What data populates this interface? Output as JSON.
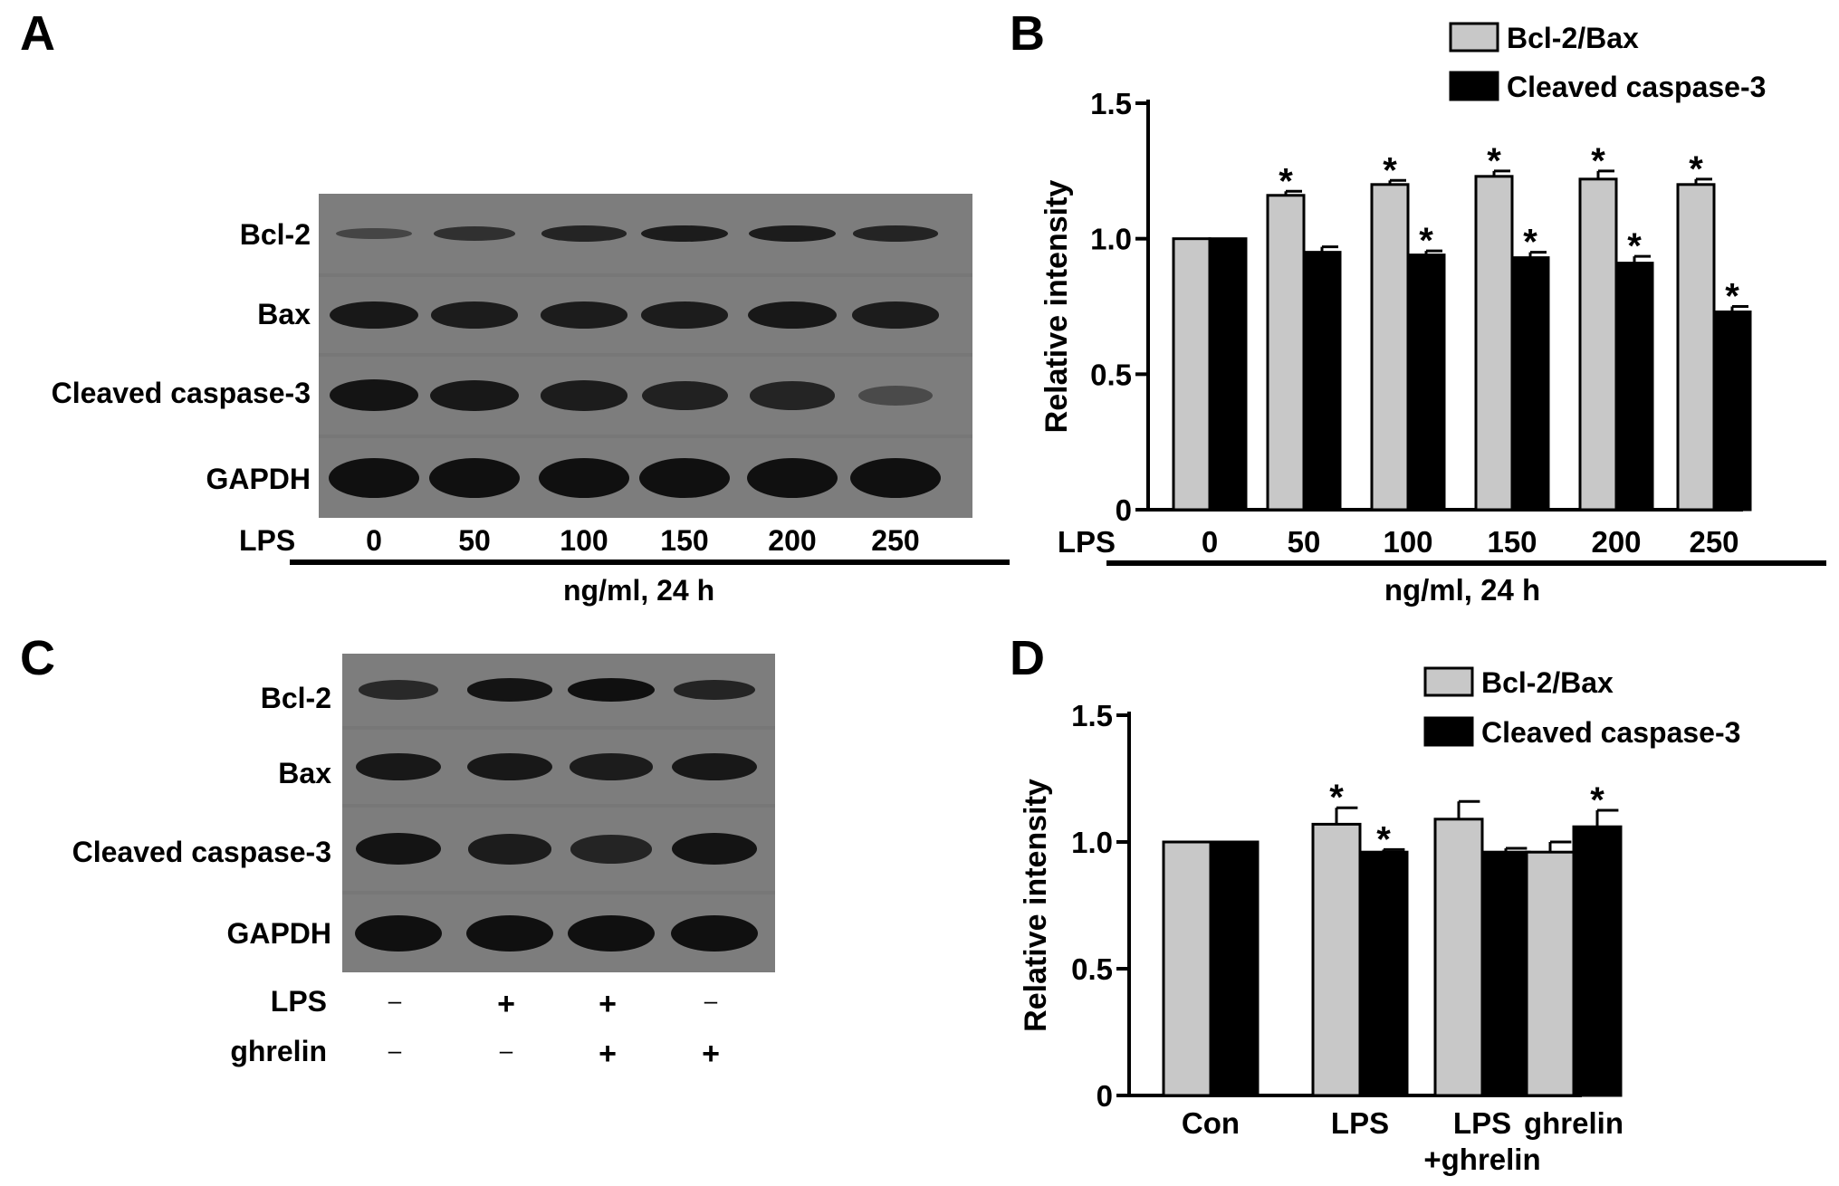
{
  "panels": {
    "a": "A",
    "b": "B",
    "c": "C",
    "d": "D"
  },
  "blot_a": {
    "rows": [
      "Bcl-2",
      "Bax",
      "Cleaved caspase-3",
      "GAPDH"
    ],
    "lps_label": "LPS",
    "lanes": [
      "0",
      "50",
      "100",
      "150",
      "200",
      "250"
    ],
    "unit": "ng/ml, 24 h",
    "band_intensity": {
      "Bcl-2": [
        0.35,
        0.6,
        0.75,
        0.85,
        0.85,
        0.75
      ],
      "Bax": [
        0.9,
        0.85,
        0.85,
        0.85,
        0.9,
        0.85
      ],
      "Cleaved caspase-3": [
        0.95,
        0.9,
        0.85,
        0.8,
        0.75,
        0.3
      ],
      "GAPDH": [
        1,
        1,
        1,
        1,
        1,
        1
      ]
    }
  },
  "blot_c": {
    "rows": [
      "Bcl-2",
      "Bax",
      "Cleaved caspase-3",
      "GAPDH"
    ],
    "treatments": [
      {
        "label": "LPS",
        "values": [
          "–",
          "+",
          "+",
          "–"
        ]
      },
      {
        "label": "ghrelin",
        "values": [
          "–",
          "–",
          "+",
          "+"
        ]
      }
    ],
    "band_intensity": {
      "Bcl-2": [
        0.7,
        0.95,
        1,
        0.75
      ],
      "Bax": [
        0.9,
        0.9,
        0.85,
        0.9
      ],
      "Cleaved caspase-3": [
        0.95,
        0.85,
        0.75,
        0.95
      ],
      "GAPDH": [
        1,
        1,
        1,
        1
      ]
    }
  },
  "colors": {
    "bcl_bax": "#c8c8c8",
    "caspase": "#000000",
    "blot_bg": "#7d7d7d",
    "band": "#101010"
  },
  "chart_data": [
    {
      "type": "bar",
      "ylabel": "Relative intensity",
      "xlabel_prefix": "LPS",
      "xlabel": "ng/ml, 24 h",
      "ylim": [
        0,
        1.5
      ],
      "yticks": [
        "0",
        "0.5",
        "1.0",
        "1.5"
      ],
      "categories": [
        "0",
        "50",
        "100",
        "150",
        "200",
        "250"
      ],
      "legend_position": "top-right",
      "series": [
        {
          "name": "Bcl-2/Bax",
          "color": "#c8c8c8",
          "values": [
            1.0,
            1.16,
            1.2,
            1.23,
            1.22,
            1.2
          ],
          "errors": [
            0,
            0.015,
            0.015,
            0.02,
            0.03,
            0.02
          ],
          "significant": [
            false,
            true,
            true,
            true,
            true,
            true
          ]
        },
        {
          "name": "Cleaved caspase-3",
          "color": "#000000",
          "values": [
            1.0,
            0.95,
            0.94,
            0.93,
            0.91,
            0.73
          ],
          "errors": [
            0,
            0.02,
            0.015,
            0.02,
            0.025,
            0.02
          ],
          "significant": [
            false,
            false,
            true,
            true,
            true,
            true
          ]
        }
      ],
      "sig_mark": "*"
    },
    {
      "type": "bar",
      "ylabel": "Relative intensity",
      "ylim": [
        0,
        1.5
      ],
      "yticks": [
        "0",
        "0.5",
        "1.0",
        "1.5"
      ],
      "categories": [
        "Con",
        "LPS",
        "LPS\n+ghrelin",
        "ghrelin"
      ],
      "legend_position": "top-right",
      "series": [
        {
          "name": "Bcl-2/Bax",
          "color": "#c8c8c8",
          "values": [
            1.0,
            1.07,
            1.09,
            0.96
          ],
          "errors": [
            0,
            0.065,
            0.07,
            0.04
          ],
          "significant": [
            false,
            true,
            false,
            false
          ]
        },
        {
          "name": "Cleaved caspase-3",
          "color": "#000000",
          "values": [
            1.0,
            0.96,
            0.96,
            1.06
          ],
          "errors": [
            0,
            0.01,
            0.015,
            0.065
          ],
          "significant": [
            false,
            true,
            false,
            true
          ]
        }
      ],
      "sig_mark": "*"
    }
  ]
}
